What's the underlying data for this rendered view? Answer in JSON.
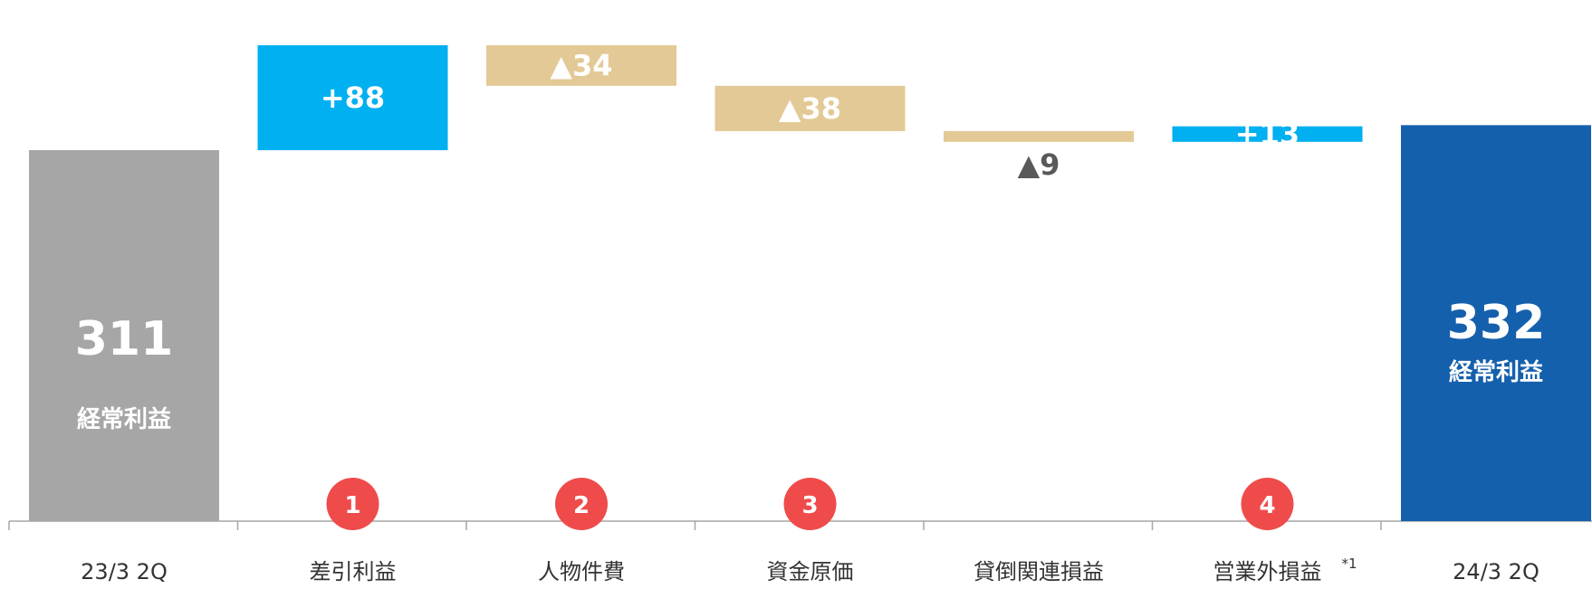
{
  "chart_data": {
    "type": "waterfall",
    "categories": [
      "23/3 2Q",
      "差引利益",
      "人物件費",
      "資金原価",
      "貸倒関連損益",
      "営業外損益",
      "24/3 2Q"
    ],
    "values": [
      311,
      88,
      -34,
      -38,
      -9,
      13,
      332
    ],
    "value_labels": [
      "311",
      "+88",
      "▲34",
      "▲38",
      "▲9",
      "+13",
      "332"
    ],
    "bar_kinds": [
      "total",
      "delta",
      "delta",
      "delta",
      "delta",
      "delta",
      "total"
    ],
    "total_sublabels": [
      "経常利益",
      "",
      "",
      "",
      "",
      "",
      "経常利益"
    ],
    "badges": [
      "",
      "1",
      "2",
      "3",
      "",
      "4",
      ""
    ],
    "footnote_marks": [
      "",
      "",
      "",
      "",
      "",
      "*1",
      ""
    ],
    "colors": {
      "start_total": "#a6a6a6",
      "end_total": "#1560ad",
      "increase": "#00b0f0",
      "decrease": "#e3c995",
      "badge": "#f04b4b",
      "axis": "#a6a6a6",
      "label_dark": "#595959",
      "category_text": "#333333"
    }
  }
}
